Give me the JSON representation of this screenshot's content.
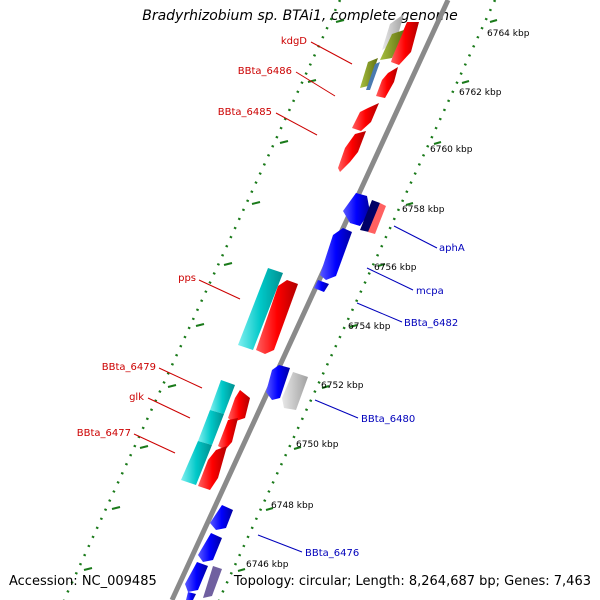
{
  "title": "Bradyrhizobium sp. BTAi1, complete genome",
  "accession": "Accession: NC_009485",
  "topology": "Topology: circular; Length: 8,264,687 bp; Genes: 7,463",
  "colors": {
    "backbone": "#909090",
    "forward_gene": "#ff0000",
    "reverse_gene": "#0000ff",
    "cyan_gene": "#00c8c8",
    "forward_label": "#cc0000",
    "reverse_label": "#0000bb",
    "dots": "#1a7a1a"
  },
  "ticks": [
    "6764 kbp",
    "6762 kbp",
    "6760 kbp",
    "6758 kbp",
    "6756 kbp",
    "6754 kbp",
    "6752 kbp",
    "6750 kbp",
    "6748 kbp",
    "6746 kbp"
  ],
  "forward_labels": [
    "kdgD",
    "BBta_6486",
    "BBta_6485",
    "pps",
    "BBta_6479",
    "glk",
    "BBta_6477"
  ],
  "reverse_labels": [
    "aphA",
    "mcpa",
    "BBta_6482",
    "BBta_6480",
    "BBta_6476"
  ]
}
